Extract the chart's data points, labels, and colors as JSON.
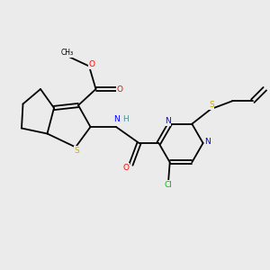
{
  "background_color": "#ebebeb",
  "atom_colors": {
    "C": "#000000",
    "N": "#0000ff",
    "O": "#ff0000",
    "S": "#ccaa00",
    "Cl": "#00bb00",
    "H": "#4a9090"
  },
  "figsize": [
    3.0,
    3.0
  ],
  "dpi": 100
}
